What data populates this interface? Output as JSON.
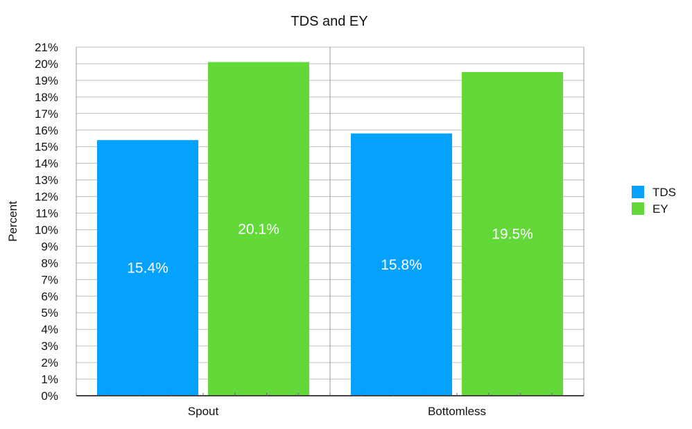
{
  "chart_data": {
    "type": "bar",
    "title": "TDS and EY",
    "xlabel": "",
    "ylabel": "Percent",
    "categories": [
      "Spout",
      "Bottomless"
    ],
    "series": [
      {
        "name": "TDS",
        "values": [
          15.4,
          15.8
        ],
        "labels": [
          "15.4%",
          "15.8%"
        ],
        "color": "#04a2fd"
      },
      {
        "name": "EY",
        "values": [
          20.1,
          19.5
        ],
        "labels": [
          "20.1%",
          "19.5%"
        ],
        "color": "#62d839"
      }
    ],
    "ylim": [
      0,
      21
    ],
    "ytick_step": 1,
    "ytick_suffix": "%",
    "grid": true,
    "legend_position": "right"
  }
}
